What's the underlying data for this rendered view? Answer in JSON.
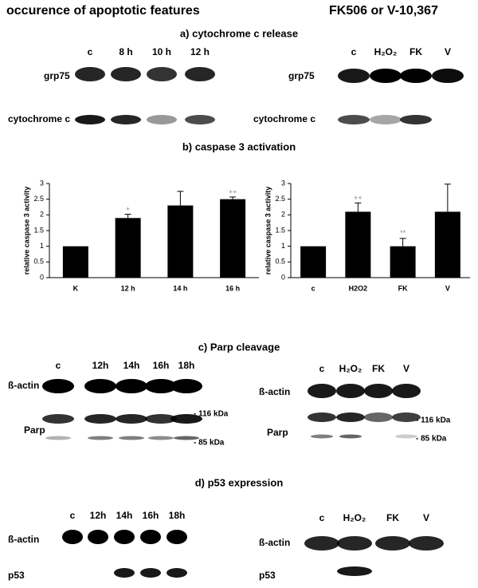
{
  "title": "occurence of apoptotic features",
  "subtitle": "FK506 or V-10,367",
  "panels": {
    "a": {
      "heading": "a) cytochrome c release",
      "left": {
        "lanes": [
          "c",
          "8 h",
          "10 h",
          "12 h"
        ],
        "rows": [
          "grp75",
          "cytochrome c"
        ]
      },
      "right": {
        "lanes": [
          "c",
          "H₂O₂",
          "FK",
          "V"
        ],
        "rows": [
          "grp75",
          "cytochrome c"
        ]
      }
    },
    "b": {
      "heading": "b) caspase 3 activation"
    },
    "c": {
      "heading": "c) Parp cleavage",
      "left": {
        "lanes": [
          "c",
          "12h",
          "14h",
          "16h",
          "18h"
        ],
        "rows": [
          "ß-actin",
          "Parp"
        ],
        "markers": [
          "- 116 kDa",
          "- 85 kDa"
        ]
      },
      "right": {
        "lanes": [
          "c",
          "H₂O₂",
          "FK",
          "V"
        ],
        "rows": [
          "ß-actin",
          "Parp"
        ],
        "markers": [
          "- 116 kDa",
          "- 85 kDa"
        ]
      }
    },
    "d": {
      "heading": "d) p53 expression",
      "left": {
        "lanes": [
          "c",
          "12h",
          "14h",
          "16h",
          "18h"
        ],
        "rows": [
          "ß-actin",
          "p53"
        ]
      },
      "right": {
        "lanes": [
          "c",
          "H₂O₂",
          "FK",
          "V"
        ],
        "rows": [
          "ß-actin",
          "p53"
        ]
      }
    }
  },
  "chart_data": [
    {
      "type": "bar",
      "y_label": "relative caspase 3 activity",
      "categories": [
        "K",
        "12 h",
        "14 h",
        "16 h"
      ],
      "values": [
        1,
        1.9,
        2.3,
        2.5
      ],
      "errors": [
        null,
        0.12,
        0.45,
        0.07
      ],
      "significance": [
        null,
        "+",
        null,
        "++"
      ],
      "color": "#000000",
      "ylim": [
        0,
        3
      ],
      "yticks": [
        0,
        0.5,
        1,
        1.5,
        2,
        2.5,
        3
      ],
      "grid": false
    },
    {
      "type": "bar",
      "y_label": "relative caspase 3 activity",
      "categories": [
        "c",
        "H2O2",
        "FK",
        "V"
      ],
      "values": [
        1,
        2.1,
        1.0,
        2.1
      ],
      "errors": [
        null,
        0.28,
        0.25,
        0.88
      ],
      "significance": [
        null,
        "++",
        "**",
        null
      ],
      "color": "#000000",
      "ylim": [
        0,
        3
      ],
      "yticks": [
        0,
        0.5,
        1,
        1.5,
        2,
        2.5,
        3
      ],
      "grid": false
    }
  ]
}
